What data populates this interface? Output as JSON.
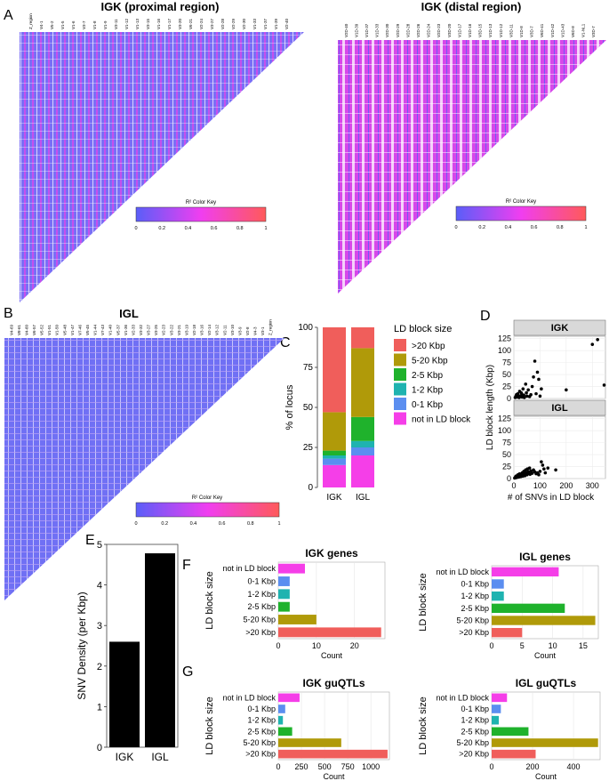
{
  "panel_labels": {
    "A": "A",
    "B": "B",
    "C": "C",
    "D": "D",
    "E": "E",
    "F": "F",
    "G": "G"
  },
  "colors": {
    "gt20": "#f05e5b",
    "k5_20": "#b09a09",
    "k2_5": "#1fb22c",
    "k1_2": "#1fb3b0",
    "k0_1": "#5b8ef0",
    "notld": "#f53ee8",
    "heat_low": "#5a5ef8",
    "heat_mid": "#f03ef0",
    "heat_high": "#ff5a5a"
  },
  "heatmaps": [
    {
      "title": "IGK (proximal region)",
      "key_title": "R² Color Key",
      "key_ticks": [
        "0",
        "0.2",
        "0.4",
        "0.6",
        "0.8",
        "1"
      ],
      "gene_labels": [
        "Z_region",
        "V4-1",
        "V5-2",
        "V1-5",
        "V1-6",
        "V3-7",
        "V1-8",
        "V1-9",
        "V3-11",
        "V1-12",
        "V1-13",
        "V3-15",
        "V1-16",
        "V1-17",
        "V3-20",
        "V6-21",
        "V2-24",
        "V3-27",
        "V2-28",
        "V2-29",
        "V2-30",
        "V1-33",
        "V1-37",
        "V1-39",
        "V2-40"
      ]
    },
    {
      "title": "IGK (distal region)",
      "key_title": "R² Color Key",
      "key_ticks": [
        "0",
        "0.2",
        "0.4",
        "0.6",
        "0.8",
        "1"
      ],
      "gene_labels": [
        "V2D-40",
        "V1D-39",
        "V1D-37",
        "V1D-33",
        "V2D-30",
        "V2D-29",
        "V2D-28",
        "V2D-26",
        "V2D-24",
        "V2D-23",
        "V3D-20",
        "V1D-17",
        "V1D-16",
        "V3D-15",
        "V1D-13",
        "V1D-12",
        "V3D-11",
        "V1D-8",
        "V3D-7",
        "V6D-41",
        "V1D-42",
        "V1D-43",
        "V6D-8",
        "V1-NL1",
        "V3D-7"
      ]
    },
    {
      "title": "IGL",
      "key_title": "R² Color Key",
      "key_ticks": [
        "0",
        "0.2",
        "0.4",
        "0.6",
        "0.8",
        "1"
      ],
      "gene_labels": [
        "V4-69",
        "V8-61",
        "V4-60",
        "V6-57",
        "V5-52",
        "V1-51",
        "V1-50",
        "V5-48",
        "V1-47",
        "V7-46",
        "V5-45",
        "V1-44",
        "V7-43",
        "V1-40",
        "V5-37",
        "V1-36",
        "V2-33",
        "V3-32",
        "V3-27",
        "V3-25",
        "V2-23",
        "V3-22",
        "V3-21",
        "V3-19",
        "V2-18",
        "V3-16",
        "V2-14",
        "V3-12",
        "V2-11",
        "V3-10",
        "V3-9",
        "V2-8",
        "V4-3",
        "V3-1",
        "Z_region"
      ]
    }
  ],
  "chart_data": [
    {
      "type": "bar",
      "id": "C",
      "title": "",
      "xlabel": "",
      "ylabel": "% of locus",
      "stacked": true,
      "categories": [
        "IGK",
        "IGL"
      ],
      "ylim": [
        0,
        100
      ],
      "yticks": [
        "0",
        "25",
        "50",
        "75",
        "100"
      ],
      "legend_title": "LD block size",
      "series": [
        {
          "name": "not in LD block",
          "color_key": "notld",
          "values": [
            14,
            20
          ]
        },
        {
          "name": "0-1 Kbp",
          "color_key": "k0_1",
          "values": [
            4,
            5
          ]
        },
        {
          "name": "1-2 Kbp",
          "color_key": "k1_2",
          "values": [
            2,
            4
          ]
        },
        {
          "name": "2-5 Kbp",
          "color_key": "k2_5",
          "values": [
            3,
            15
          ]
        },
        {
          "name": "5-20 Kbp",
          "color_key": "k5_20",
          "values": [
            24,
            43
          ]
        },
        {
          "name": ">20 Kbp",
          "color_key": "gt20",
          "values": [
            53,
            13
          ]
        }
      ],
      "legend_order": [
        ">20 Kbp",
        "5-20 Kbp",
        "2-5 Kbp",
        "1-2 Kbp",
        "0-1 Kbp",
        "not in LD block"
      ]
    },
    {
      "type": "scatter",
      "id": "D",
      "xlabel": "# of SNVs in LD block",
      "ylabel": "LD block length (Kbp)",
      "xlim": [
        0,
        350
      ],
      "ylim": [
        0,
        130
      ],
      "xticks": [
        "0",
        "100",
        "200",
        "300"
      ],
      "yticks": [
        "0",
        "25",
        "50",
        "75",
        "100",
        "125"
      ],
      "facets": [
        {
          "name": "IGK",
          "points": [
            [
              5,
              2
            ],
            [
              8,
              5
            ],
            [
              10,
              8
            ],
            [
              12,
              3
            ],
            [
              15,
              10
            ],
            [
              18,
              6
            ],
            [
              20,
              2
            ],
            [
              22,
              15
            ],
            [
              25,
              4
            ],
            [
              28,
              12
            ],
            [
              30,
              9
            ],
            [
              32,
              3
            ],
            [
              35,
              20
            ],
            [
              38,
              7
            ],
            [
              40,
              2
            ],
            [
              45,
              30
            ],
            [
              48,
              12
            ],
            [
              50,
              5
            ],
            [
              55,
              18
            ],
            [
              60,
              4
            ],
            [
              65,
              8
            ],
            [
              70,
              25
            ],
            [
              75,
              45
            ],
            [
              80,
              78
            ],
            [
              85,
              10
            ],
            [
              90,
              55
            ],
            [
              95,
              40
            ],
            [
              100,
              5
            ],
            [
              105,
              20
            ],
            [
              200,
              18
            ],
            [
              300,
              113
            ],
            [
              320,
              123
            ],
            [
              345,
              28
            ]
          ]
        },
        {
          "name": "IGL",
          "points": [
            [
              3,
              1
            ],
            [
              6,
              3
            ],
            [
              8,
              5
            ],
            [
              10,
              2
            ],
            [
              12,
              6
            ],
            [
              14,
              4
            ],
            [
              16,
              8
            ],
            [
              18,
              3
            ],
            [
              20,
              5
            ],
            [
              22,
              10
            ],
            [
              24,
              7
            ],
            [
              26,
              4
            ],
            [
              28,
              9
            ],
            [
              30,
              6
            ],
            [
              32,
              12
            ],
            [
              34,
              5
            ],
            [
              36,
              8
            ],
            [
              38,
              15
            ],
            [
              40,
              10
            ],
            [
              42,
              6
            ],
            [
              45,
              18
            ],
            [
              48,
              12
            ],
            [
              50,
              8
            ],
            [
              52,
              20
            ],
            [
              55,
              14
            ],
            [
              58,
              10
            ],
            [
              60,
              22
            ],
            [
              62,
              9
            ],
            [
              65,
              16
            ],
            [
              68,
              12
            ],
            [
              70,
              11
            ],
            [
              75,
              18
            ],
            [
              80,
              14
            ],
            [
              85,
              10
            ],
            [
              90,
              12
            ],
            [
              95,
              8
            ],
            [
              100,
              15
            ],
            [
              105,
              35
            ],
            [
              110,
              28
            ],
            [
              115,
              20
            ],
            [
              120,
              12
            ],
            [
              130,
              22
            ],
            [
              160,
              18
            ]
          ]
        }
      ]
    },
    {
      "type": "bar",
      "id": "E",
      "xlabel": "",
      "ylabel": "SNV Density (per Kbp)",
      "categories": [
        "IGK",
        "IGL"
      ],
      "values": [
        2.6,
        4.78
      ],
      "ylim": [
        0,
        5
      ],
      "yticks": [
        "0",
        "1",
        "2",
        "3",
        "4",
        "5"
      ]
    },
    {
      "type": "bar",
      "orientation": "horizontal",
      "id": "F1",
      "title": "IGK genes",
      "xlabel": "Count",
      "ylabel": "LD block size",
      "categories": [
        "not in LD block",
        "0-1 Kbp",
        "1-2 Kbp",
        "2-5 Kbp",
        "5-20 Kbp",
        ">20 Kbp"
      ],
      "color_keys": [
        "notld",
        "k0_1",
        "k1_2",
        "k2_5",
        "k5_20",
        "gt20"
      ],
      "values": [
        7,
        3,
        3,
        3,
        10,
        27
      ],
      "xlim": [
        0,
        28
      ],
      "xticks": [
        0,
        10,
        20
      ]
    },
    {
      "type": "bar",
      "orientation": "horizontal",
      "id": "F2",
      "title": "IGL genes",
      "xlabel": "Count",
      "ylabel": "LD block size",
      "categories": [
        "not in LD block",
        "0-1 Kbp",
        "1-2 Kbp",
        "2-5 Kbp",
        "5-20 Kbp",
        ">20 Kbp"
      ],
      "color_keys": [
        "notld",
        "k0_1",
        "k1_2",
        "k2_5",
        "k5_20",
        "gt20"
      ],
      "values": [
        11,
        2,
        2,
        12,
        17,
        5
      ],
      "xlim": [
        0,
        17.5
      ],
      "xticks": [
        0,
        5,
        10,
        15
      ]
    },
    {
      "type": "bar",
      "orientation": "horizontal",
      "id": "G1",
      "title": "IGK guQTLs",
      "xlabel": "Count",
      "ylabel": "LD block size",
      "categories": [
        "not in LD block",
        "0-1 Kbp",
        "1-2 Kbp",
        "2-5 Kbp",
        "5-20 Kbp",
        ">20 Kbp"
      ],
      "color_keys": [
        "notld",
        "k0_1",
        "k1_2",
        "k2_5",
        "k5_20",
        "gt20"
      ],
      "values": [
        230,
        75,
        50,
        150,
        680,
        1180
      ],
      "xlim": [
        0,
        1200
      ],
      "xticks": [
        0,
        250,
        500,
        750,
        1000
      ]
    },
    {
      "type": "bar",
      "orientation": "horizontal",
      "id": "G2",
      "title": "IGL guQTLs",
      "xlabel": "Count",
      "ylabel": "LD block size",
      "categories": [
        "not in LD block",
        "0-1 Kbp",
        "1-2 Kbp",
        "2-5 Kbp",
        "5-20 Kbp",
        ">20 Kbp"
      ],
      "color_keys": [
        "notld",
        "k0_1",
        "k1_2",
        "k2_5",
        "k5_20",
        "gt20"
      ],
      "values": [
        75,
        45,
        35,
        180,
        520,
        215
      ],
      "xlim": [
        0,
        530
      ],
      "xticks": [
        0,
        200,
        400
      ]
    }
  ]
}
